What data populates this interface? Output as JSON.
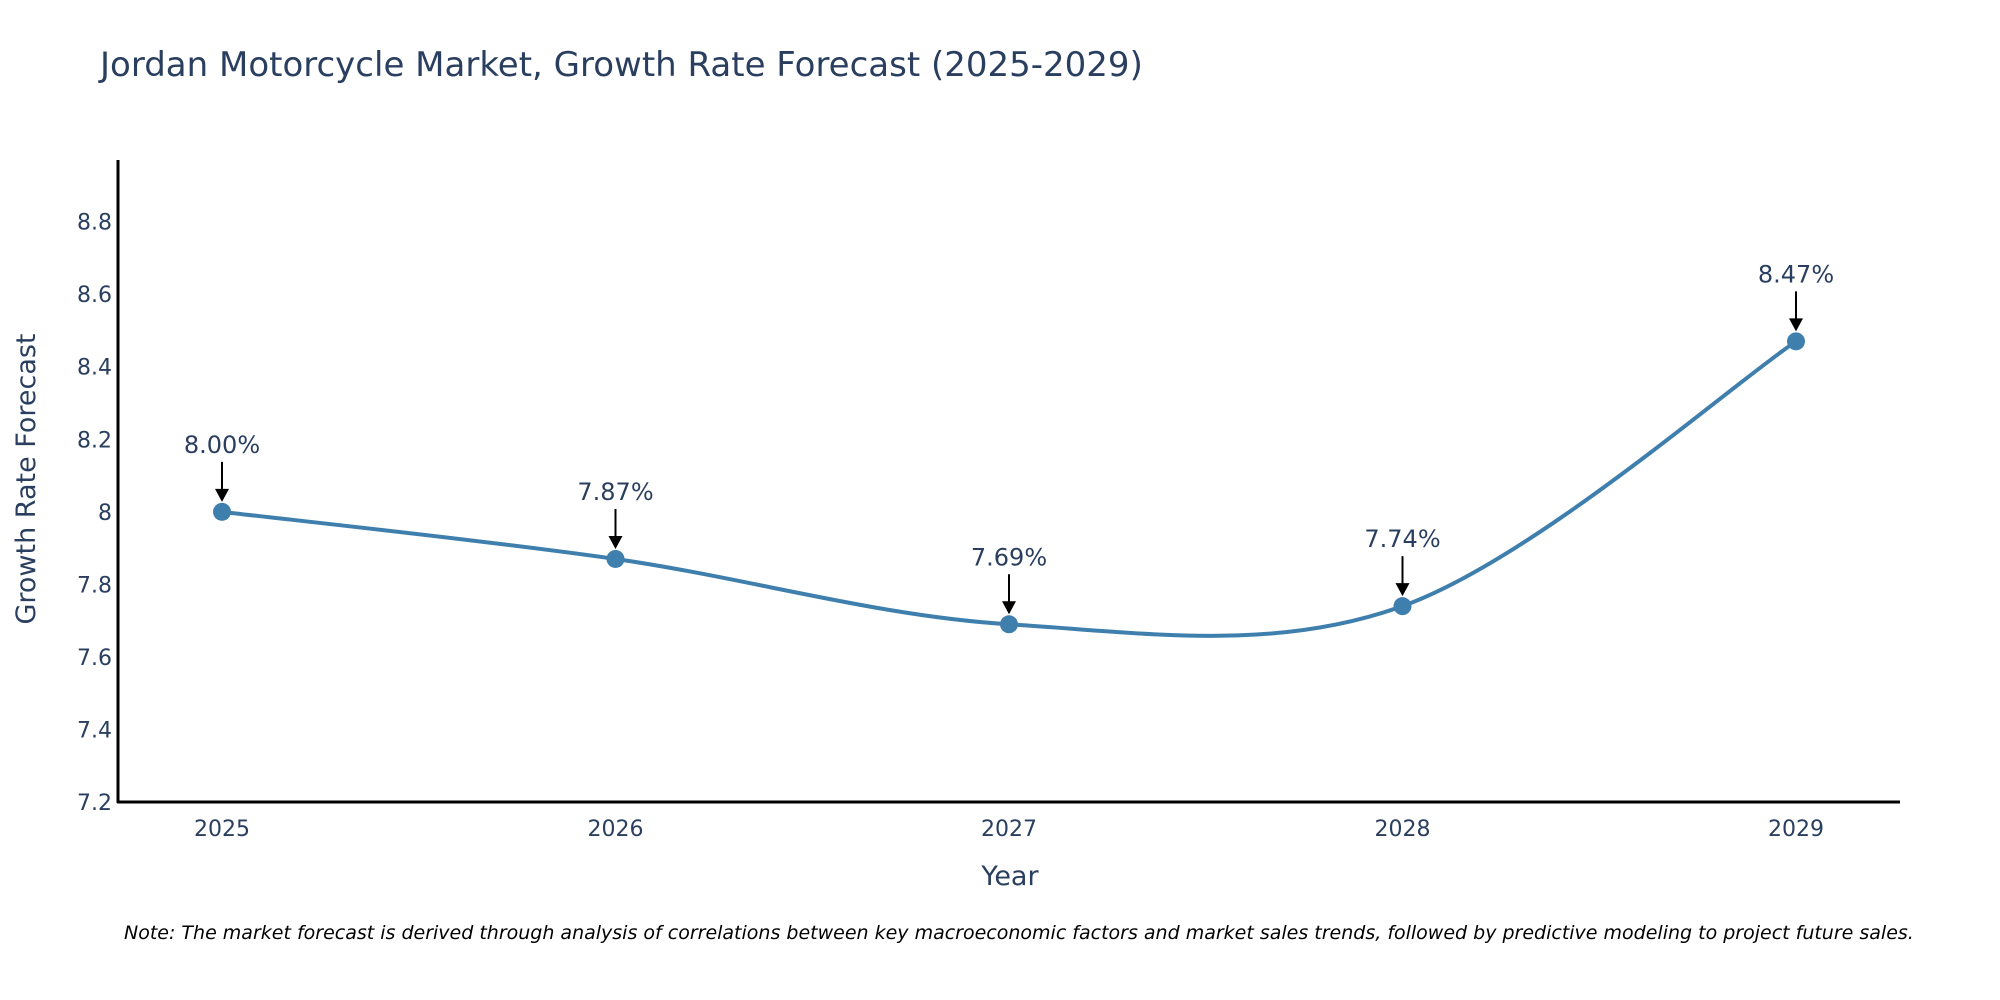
{
  "chart_data": {
    "type": "line",
    "title": "Jordan Motorcycle Market, Growth Rate Forecast (2025-2029)",
    "xlabel": "Year",
    "ylabel": "Growth Rate Forecast",
    "categories": [
      "2025",
      "2026",
      "2027",
      "2028",
      "2029"
    ],
    "series": [
      {
        "name": "Growth Rate Forecast",
        "values": [
          8.0,
          7.87,
          7.69,
          7.74,
          8.47
        ]
      }
    ],
    "data_labels": [
      "8.00%",
      "7.87%",
      "7.69%",
      "7.74%",
      "8.47%"
    ],
    "ylim": [
      7.2,
      8.97
    ],
    "yticks": [
      7.2,
      7.4,
      7.6,
      7.8,
      8,
      8.2,
      8.4,
      8.6,
      8.8
    ],
    "ytick_labels": [
      "7.2",
      "7.4",
      "7.6",
      "7.8",
      "8",
      "8.2",
      "8.4",
      "8.6",
      "8.8"
    ],
    "grid": false,
    "line_color": "#3f7fad",
    "marker_color": "#3f7fad",
    "annotation_arrow_color": "#000000",
    "axis_color": "#000000"
  },
  "note": "Note: The market forecast is derived through analysis of correlations between key macroeconomic factors and market sales trends, followed by predictive modeling to project future sales."
}
